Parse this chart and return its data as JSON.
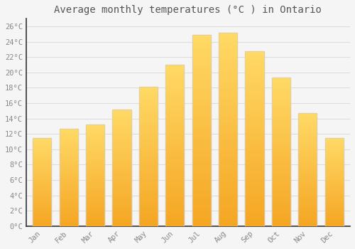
{
  "title": "Average monthly temperatures (°C ) in Ontario",
  "months": [
    "Jan",
    "Feb",
    "Mar",
    "Apr",
    "May",
    "Jun",
    "Jul",
    "Aug",
    "Sep",
    "Oct",
    "Nov",
    "Dec"
  ],
  "values": [
    11.5,
    12.7,
    13.2,
    15.2,
    18.1,
    21.0,
    24.9,
    25.2,
    22.8,
    19.3,
    14.7,
    11.5
  ],
  "bar_color_bottom": "#F5A623",
  "bar_color_top": "#FFD966",
  "bar_edge_color": "#CCCCCC",
  "background_color": "#F5F5F5",
  "plot_bg_color": "#F5F5F5",
  "grid_color": "#DDDDDD",
  "tick_label_color": "#888888",
  "title_color": "#555555",
  "axis_color": "#333333",
  "ylim": [
    0,
    27
  ],
  "yticks": [
    0,
    2,
    4,
    6,
    8,
    10,
    12,
    14,
    16,
    18,
    20,
    22,
    24,
    26
  ],
  "ytick_labels": [
    "0°C",
    "2°C",
    "4°C",
    "6°C",
    "8°C",
    "10°C",
    "12°C",
    "14°C",
    "16°C",
    "18°C",
    "20°C",
    "22°C",
    "24°C",
    "26°C"
  ],
  "title_fontsize": 10,
  "tick_fontsize": 7.5,
  "font_family": "monospace"
}
